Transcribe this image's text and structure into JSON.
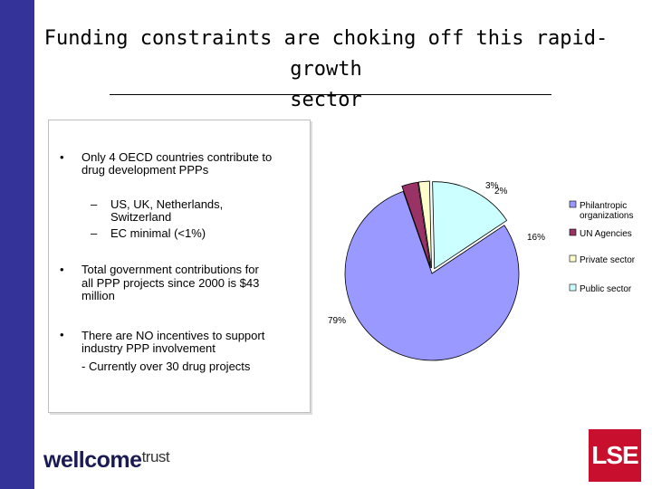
{
  "slide": {
    "title_line1": "Funding constraints are choking off this rapid-growth",
    "title_line2": "sector",
    "bullet_char": "•",
    "dash_char": "–",
    "bullet1_line1": "Only 4 OECD countries contribute to",
    "bullet1_line2": "drug development PPPs",
    "sub1_line1": "US, UK, Netherlands,",
    "sub1_line2": "Switzerland",
    "sub2": "EC minimal (<1%)",
    "bullet2_line1": "Total government contributions for",
    "bullet2_line2": "all  PPP projects since 2000 is $43",
    "bullet2_line3": "million",
    "bullet3_line1": "There are NO incentives to support",
    "bullet3_line2": "industry PPP involvement",
    "bullet3_line3": "- Currently over 30 drug projects"
  },
  "logos": {
    "wellcome": "wellcome",
    "trust": "trust",
    "lse": "LSE"
  },
  "chart_data": {
    "type": "pie",
    "series": [
      {
        "name": "Philantropic organizations",
        "value": 79,
        "label": "79%",
        "color": "#9999ff"
      },
      {
        "name": "UN Agencies",
        "value": 3,
        "label": "3%",
        "color": "#993366"
      },
      {
        "name": "Private sector",
        "value": 2,
        "label": "2%",
        "color": "#ffffcc"
      },
      {
        "name": "Public sector",
        "value": 16,
        "label": "16%",
        "color": "#ccffff"
      }
    ],
    "legend_labels": [
      "Philantropic",
      "organizations",
      "UN Agencies",
      "Private sector",
      "Public sector"
    ],
    "legend_position": "right"
  }
}
